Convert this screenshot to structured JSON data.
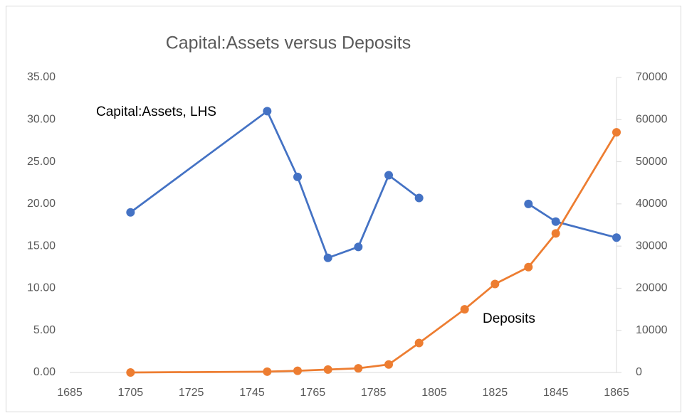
{
  "chart_data": {
    "type": "line",
    "title": "Capital:Assets versus Deposits",
    "x": [
      1705,
      1750,
      1760,
      1770,
      1780,
      1790,
      1800,
      1815,
      1825,
      1836,
      1845,
      1865
    ],
    "series": [
      {
        "name": "Capital:Assets, LHS",
        "color": "#4472c4",
        "values": [
          19.0,
          31.0,
          23.2,
          13.6,
          14.9,
          23.4,
          20.7,
          null,
          null,
          20.0,
          17.9,
          16.0
        ]
      },
      {
        "name": "Deposits",
        "color": "#ed7d31",
        "axis": "y2",
        "values": [
          0,
          200,
          400,
          700,
          1000,
          1900,
          7000,
          15000,
          21000,
          25000,
          33000,
          57000
        ]
      }
    ],
    "xlim": [
      1685,
      1865
    ],
    "xticks": [
      1685,
      1705,
      1725,
      1745,
      1765,
      1785,
      1805,
      1825,
      1845,
      1865
    ],
    "ylim": [
      0,
      35
    ],
    "yticks": [
      {
        "value": 0,
        "label": "0.00"
      },
      {
        "value": 5,
        "label": "5.00"
      },
      {
        "value": 10,
        "label": "10.00"
      },
      {
        "value": 15,
        "label": "15.00"
      },
      {
        "value": 20,
        "label": "20.00"
      },
      {
        "value": 25,
        "label": "25.00"
      },
      {
        "value": 30,
        "label": "30.00"
      },
      {
        "value": 35,
        "label": "35.00"
      }
    ],
    "y2lim": [
      0,
      70000
    ],
    "y2ticks": [
      0,
      10000,
      20000,
      30000,
      40000,
      50000,
      60000,
      70000
    ],
    "grid": false
  }
}
